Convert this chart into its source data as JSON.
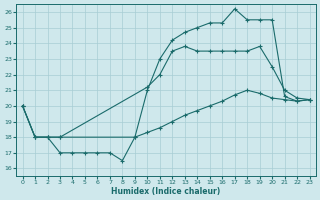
{
  "xlabel": "Humidex (Indice chaleur)",
  "xlim": [
    -0.5,
    23.5
  ],
  "ylim": [
    15.5,
    26.5
  ],
  "yticks": [
    16,
    17,
    18,
    19,
    20,
    21,
    22,
    23,
    24,
    25,
    26
  ],
  "xticks": [
    0,
    1,
    2,
    3,
    4,
    5,
    6,
    7,
    8,
    9,
    10,
    11,
    12,
    13,
    14,
    15,
    16,
    17,
    18,
    19,
    20,
    21,
    22,
    23
  ],
  "bg_color": "#cfe8ec",
  "grid_color": "#a8cdd4",
  "line_color": "#1a6b6b",
  "line1_x": [
    0,
    1,
    2,
    3,
    9,
    10,
    11,
    12,
    13,
    14,
    15,
    16,
    17,
    18,
    19,
    20,
    21,
    22,
    23
  ],
  "line1_y": [
    20,
    18,
    18,
    18,
    18,
    21,
    23,
    24.2,
    24.7,
    25,
    25.3,
    25.3,
    26.2,
    25.5,
    25.5,
    25.5,
    20.6,
    20.3,
    20.4
  ],
  "line2_x": [
    0,
    1,
    2,
    3,
    10,
    11,
    12,
    13,
    14,
    15,
    16,
    17,
    18,
    19,
    20,
    21,
    22,
    23
  ],
  "line2_y": [
    20,
    18,
    18,
    18,
    21.2,
    22,
    23.5,
    23.8,
    23.5,
    23.5,
    23.5,
    23.5,
    23.5,
    23.8,
    22.5,
    21,
    20.5,
    20.4
  ],
  "line3_x": [
    0,
    1,
    2,
    3,
    4,
    5,
    6,
    7,
    8,
    9,
    10,
    11,
    12,
    13,
    14,
    15,
    16,
    17,
    18,
    19,
    20,
    21,
    22,
    23
  ],
  "line3_y": [
    20,
    18,
    18,
    17,
    17,
    17,
    17,
    17,
    16.5,
    18,
    18.3,
    18.6,
    19.0,
    19.4,
    19.7,
    20.0,
    20.3,
    20.7,
    21.0,
    20.8,
    20.5,
    20.4,
    20.3,
    20.4
  ]
}
